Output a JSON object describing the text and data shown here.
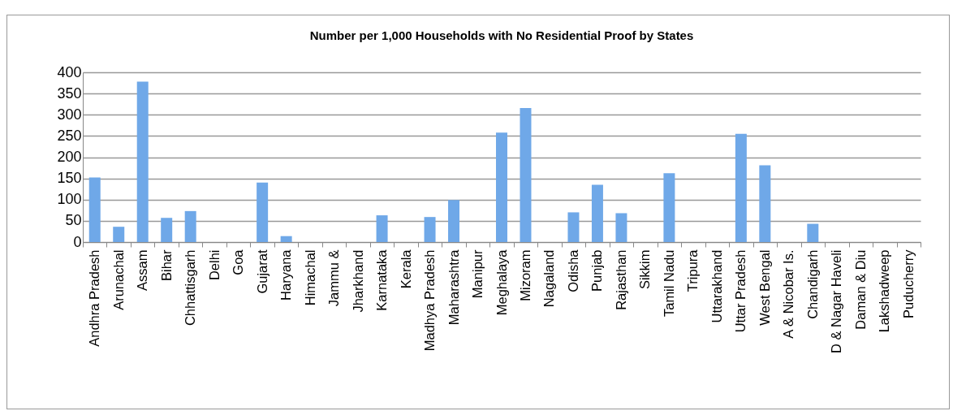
{
  "chart_data": {
    "type": "bar",
    "title": "Number per 1,000 Households with No Residential Proof by States",
    "categories": [
      "Andhra Pradesh",
      "Arunachal",
      "Assam",
      "Bihar",
      "Chhattisgarh",
      "Delhi",
      "Goa",
      "Gujarat",
      "Haryana",
      "Himachal",
      "Jammu &",
      "Jharkhand",
      "Karnataka",
      "Kerala",
      "Madhya Pradesh",
      "Maharashtra",
      "Manipur",
      "Meghalaya",
      "Mizoram",
      "Nagaland",
      "Odisha",
      "Punjab",
      "Rajasthan",
      "Sikkim",
      "Tamil Nadu",
      "Tripura",
      "Uttarakhand",
      "Uttar Pradesh",
      "West Bengal",
      "A & Nicobar Is.",
      "Chandigarh",
      "D & Nagar Haveli",
      "Daman & Diu",
      "Lakshadweep",
      "Puducherry"
    ],
    "values": [
      152,
      36,
      378,
      57,
      73,
      0,
      0,
      140,
      14,
      0,
      0,
      0,
      63,
      0,
      59,
      99,
      0,
      258,
      316,
      0,
      70,
      135,
      68,
      0,
      162,
      0,
      0,
      255,
      181,
      0,
      43,
      0,
      0,
      0,
      0
    ],
    "color": "#6fa8e8",
    "ylim": [
      0,
      400
    ],
    "yticks": [
      0,
      50,
      100,
      150,
      200,
      250,
      300,
      350,
      400
    ],
    "grid": "y"
  }
}
